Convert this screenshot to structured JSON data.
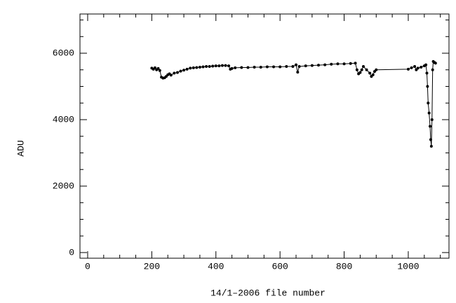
{
  "chart_data": {
    "type": "line",
    "xlabel": "14/1–2006 file number",
    "ylabel": "ADU",
    "color": "#000000",
    "markers": true,
    "xlim": [
      -24,
      1127
    ],
    "ylim": [
      -170,
      7180
    ],
    "xticks": [
      0,
      200,
      400,
      600,
      800,
      1000
    ],
    "yticks": [
      0,
      2000,
      4000,
      6000
    ],
    "xminorticks": [
      50,
      100,
      150,
      250,
      300,
      350,
      450,
      500,
      550,
      650,
      700,
      750,
      850,
      900,
      950,
      1050,
      1100
    ],
    "yminorticks": [
      500,
      1000,
      1500,
      2500,
      3000,
      3500,
      4500,
      5000,
      5500,
      6500,
      7000
    ],
    "x": [
      200,
      205,
      210,
      215,
      220,
      225,
      230,
      235,
      240,
      245,
      250,
      255,
      260,
      270,
      280,
      290,
      300,
      310,
      320,
      330,
      340,
      350,
      360,
      370,
      380,
      390,
      400,
      410,
      420,
      430,
      440,
      445,
      450,
      460,
      480,
      500,
      520,
      540,
      560,
      580,
      600,
      620,
      640,
      650,
      655,
      660,
      680,
      700,
      720,
      740,
      760,
      780,
      800,
      820,
      835,
      840,
      845,
      850,
      855,
      860,
      870,
      880,
      885,
      890,
      895,
      900,
      1000,
      1010,
      1020,
      1025,
      1030,
      1040,
      1050,
      1055,
      1058,
      1060,
      1062,
      1065,
      1068,
      1070,
      1072,
      1074,
      1076,
      1078,
      1082,
      1085
    ],
    "values": [
      5550,
      5520,
      5560,
      5500,
      5540,
      5480,
      5280,
      5250,
      5260,
      5300,
      5350,
      5380,
      5340,
      5400,
      5420,
      5460,
      5490,
      5520,
      5550,
      5560,
      5570,
      5580,
      5590,
      5600,
      5600,
      5610,
      5620,
      5620,
      5630,
      5630,
      5620,
      5520,
      5540,
      5560,
      5570,
      5570,
      5580,
      5580,
      5590,
      5590,
      5590,
      5600,
      5600,
      5650,
      5430,
      5600,
      5620,
      5630,
      5640,
      5650,
      5670,
      5680,
      5680,
      5690,
      5700,
      5500,
      5380,
      5420,
      5500,
      5600,
      5500,
      5400,
      5300,
      5350,
      5450,
      5500,
      5520,
      5560,
      5600,
      5500,
      5550,
      5580,
      5620,
      5650,
      5400,
      5000,
      4500,
      4200,
      3800,
      3400,
      3200,
      4000,
      5500,
      5750,
      5720,
      5700
    ]
  }
}
